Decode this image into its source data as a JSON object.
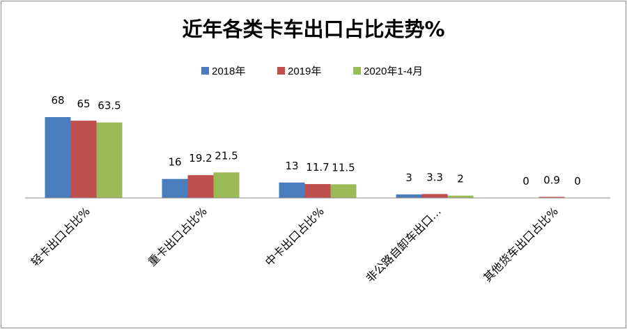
{
  "chart_data": {
    "type": "bar",
    "title": "近年各类卡车出口占比走势%",
    "categories": [
      "轻卡出口占比%",
      "重卡出口占比%",
      "中卡出口占比%",
      "非公路自卸车出口…",
      "其他货车出口占比%"
    ],
    "series": [
      {
        "name": "2018年",
        "color": "#4a7dbd",
        "values": [
          68,
          16,
          13,
          3,
          0
        ],
        "labels": [
          "68",
          "16",
          "13",
          "3",
          "0"
        ]
      },
      {
        "name": "2019年",
        "color": "#c0504d",
        "values": [
          65,
          19.2,
          11.7,
          3.3,
          0.9
        ],
        "labels": [
          "65",
          "19.2",
          "11.7",
          "3.3",
          "0.9"
        ]
      },
      {
        "name": "2020年1-4月",
        "color": "#9bbb59",
        "values": [
          63.5,
          21.5,
          11.5,
          2,
          0
        ],
        "labels": [
          "63.5",
          "21.5",
          "11.5",
          "2",
          "0"
        ]
      }
    ],
    "legend": "top",
    "grid": false,
    "ylim": [
      0,
      68
    ]
  }
}
